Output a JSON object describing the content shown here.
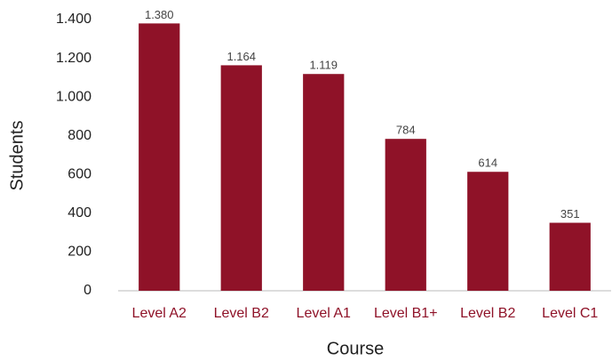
{
  "chart_data": {
    "type": "bar",
    "x_label": "Course",
    "y_label": "Students",
    "categories": [
      "Level A2",
      "Level B2",
      "Level A1",
      "Level B1+",
      "Level B2",
      "Level C1"
    ],
    "values": [
      1380,
      1164,
      1119,
      784,
      614,
      351
    ],
    "value_labels": [
      "1.380",
      "1.164",
      "1.119",
      "784",
      "614",
      "351"
    ],
    "color": "#8f1228",
    "ylim": [
      0,
      1400
    ],
    "yticks": [
      0,
      200,
      400,
      600,
      800,
      {
        "value": 1000,
        "label": "1.000"
      },
      {
        "value": 1200,
        "label": "1.200"
      },
      {
        "value": 1400,
        "label": "1.400"
      }
    ],
    "grid": false
  }
}
